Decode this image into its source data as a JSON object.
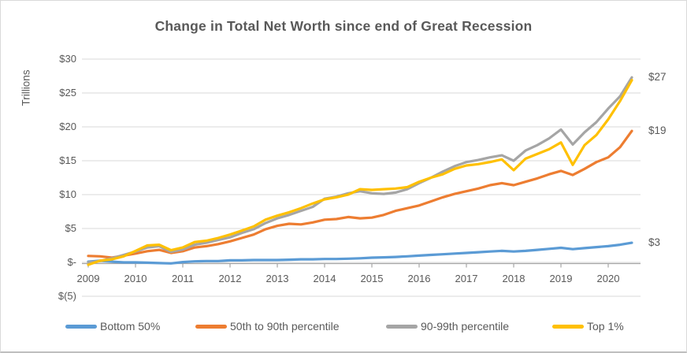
{
  "chart_data": {
    "type": "line",
    "title": "Change in Total Net Worth since end of Great Recession",
    "ylabel": "Trillions",
    "x_tick_labels": [
      "2009",
      "2010",
      "2011",
      "2012",
      "2013",
      "2014",
      "2015",
      "2016",
      "2017",
      "2018",
      "2019",
      "2020"
    ],
    "y_ticks": [
      {
        "label": "$30",
        "value": 30
      },
      {
        "label": "$25",
        "value": 25
      },
      {
        "label": "$20",
        "value": 20
      },
      {
        "label": "$15",
        "value": 15
      },
      {
        "label": "$10",
        "value": 10
      },
      {
        "label": "$5",
        "value": 5
      },
      {
        "label": "$-",
        "value": 0
      },
      {
        "label": "$(5)",
        "value": -5
      }
    ],
    "ylim": [
      -5,
      30
    ],
    "grid": true,
    "legend_position": "bottom",
    "x_unit": "quarters starting 2009Q1",
    "series": [
      {
        "name": "Bottom 50%",
        "color": "#5B9BD5",
        "values": [
          0.1,
          0.25,
          0.1,
          0.0,
          0.0,
          -0.05,
          -0.1,
          -0.15,
          0.05,
          0.15,
          0.2,
          0.2,
          0.3,
          0.3,
          0.35,
          0.35,
          0.35,
          0.4,
          0.45,
          0.45,
          0.5,
          0.5,
          0.55,
          0.6,
          0.7,
          0.75,
          0.8,
          0.9,
          1.0,
          1.1,
          1.2,
          1.3,
          1.4,
          1.5,
          1.6,
          1.7,
          1.6,
          1.7,
          1.85,
          2.0,
          2.15,
          1.95,
          2.1,
          2.25,
          2.4,
          2.6,
          2.9
        ]
      },
      {
        "name": "50th to 90th percentile",
        "color": "#ED7D31",
        "values": [
          0.95,
          0.9,
          0.7,
          1.0,
          1.3,
          1.65,
          1.85,
          1.4,
          1.65,
          2.2,
          2.4,
          2.7,
          3.1,
          3.6,
          4.1,
          4.9,
          5.4,
          5.7,
          5.6,
          5.9,
          6.3,
          6.4,
          6.7,
          6.5,
          6.6,
          7.0,
          7.6,
          8.0,
          8.4,
          9.0,
          9.6,
          10.1,
          10.5,
          10.9,
          11.4,
          11.7,
          11.4,
          11.9,
          12.4,
          13.0,
          13.5,
          12.9,
          13.8,
          14.8,
          15.5,
          17.0,
          19.4
        ]
      },
      {
        "name": "90-99th percentile",
        "color": "#A5A5A5",
        "values": [
          0.0,
          0.2,
          0.6,
          1.1,
          1.6,
          2.2,
          2.4,
          1.55,
          1.9,
          2.6,
          2.9,
          3.3,
          3.7,
          4.35,
          4.9,
          5.8,
          6.5,
          7.0,
          7.6,
          8.2,
          9.4,
          9.7,
          10.2,
          10.5,
          10.2,
          10.1,
          10.3,
          10.8,
          11.7,
          12.5,
          13.4,
          14.2,
          14.8,
          15.1,
          15.5,
          15.8,
          15.0,
          16.5,
          17.3,
          18.3,
          19.6,
          17.4,
          19.2,
          20.7,
          22.7,
          24.5,
          27.3
        ]
      },
      {
        "name": "Top 1%",
        "color": "#FFC000",
        "values": [
          -0.35,
          0.25,
          0.45,
          0.9,
          1.7,
          2.5,
          2.6,
          1.8,
          2.2,
          3.0,
          3.2,
          3.6,
          4.1,
          4.7,
          5.3,
          6.3,
          6.9,
          7.4,
          8.0,
          8.7,
          9.3,
          9.6,
          10.0,
          10.8,
          10.7,
          10.8,
          10.9,
          11.1,
          11.9,
          12.5,
          13.0,
          13.8,
          14.3,
          14.5,
          14.8,
          15.2,
          13.6,
          15.3,
          16.0,
          16.7,
          17.7,
          14.4,
          17.3,
          18.8,
          21.1,
          23.8,
          26.9
        ]
      }
    ],
    "end_labels": [
      {
        "text": "$27",
        "series": "90-99th percentile"
      },
      {
        "text": "$19",
        "series": "50th to 90th percentile"
      },
      {
        "text": "$3",
        "series": "Bottom 50%"
      }
    ],
    "style": {
      "text_color": "#595959",
      "gridline_color": "#d9d9d9",
      "axis_color": "#a6a6a6",
      "background": "#ffffff"
    }
  }
}
